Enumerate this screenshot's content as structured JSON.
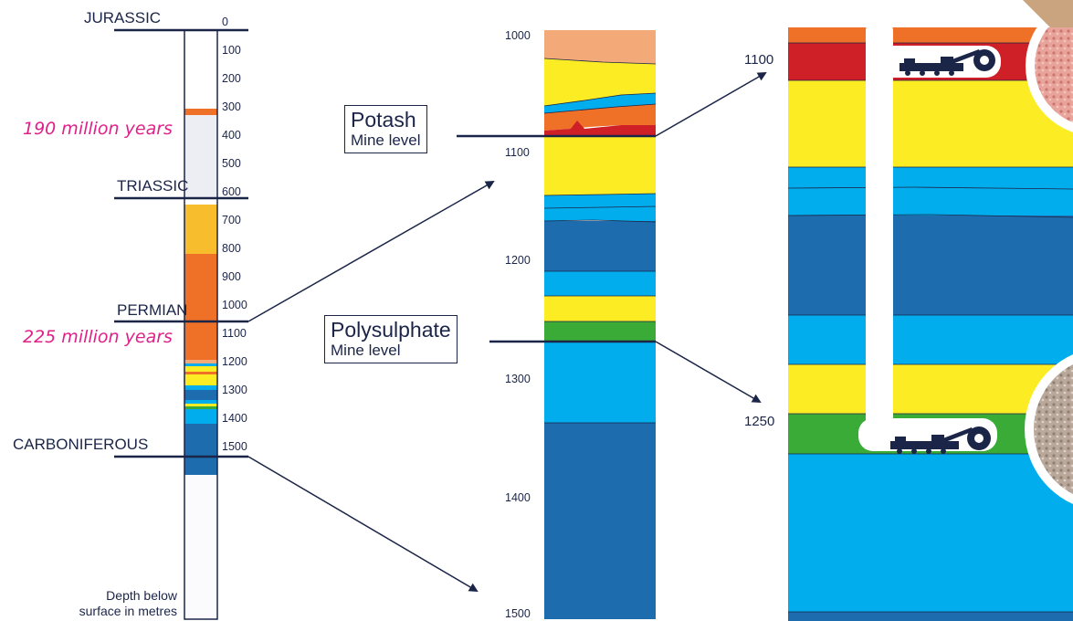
{
  "column": {
    "periods": {
      "jurassic": "JURASSIC",
      "triassic": "TRIASSIC",
      "permian": "PERMIAN",
      "carboniferous": "CARBONIFEROUS"
    },
    "ages": {
      "upper": "190 million years",
      "lower": "225 million years"
    },
    "depth_ticks": [
      "0",
      "100",
      "200",
      "300",
      "400",
      "500",
      "600",
      "700",
      "800",
      "900",
      "1000",
      "1100",
      "1200",
      "1300",
      "1400",
      "1500"
    ],
    "depth_note_line1": "Depth below",
    "depth_note_line2": "surface in metres"
  },
  "mine_levels": {
    "potash": {
      "name": "Potash",
      "sub": "Mine level"
    },
    "polysulphate": {
      "name": "Polysulphate",
      "sub": "Mine level"
    }
  },
  "middle_ticks": [
    "1000",
    "1100",
    "1200",
    "1300",
    "1400",
    "1500"
  ],
  "zoom_labels": {
    "upper": "1100",
    "lower": "1250"
  },
  "colors": {
    "navy": "#1b2548",
    "peach": "#f4a978",
    "orange": "#ef7128",
    "red": "#cf1f27",
    "yellow": "#fcec24",
    "light_blue": "#02adee",
    "dark_blue": "#1d6cad",
    "green": "#3bab38",
    "amber": "#f8bd2c",
    "pale_grey": "#ededf4",
    "magenta": "#e0218a"
  }
}
